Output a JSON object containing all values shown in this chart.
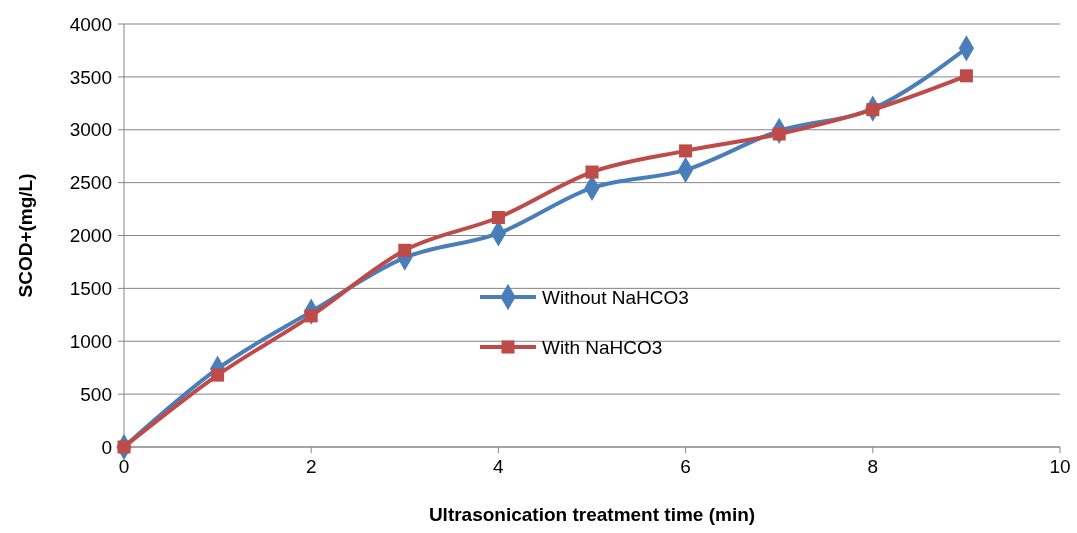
{
  "chart_data": {
    "type": "line",
    "xlabel": "Ultrasonication treatment time (min)",
    "ylabel": "SCOD+(mg/L)",
    "xlim": [
      0,
      10
    ],
    "xticks": [
      0,
      2,
      4,
      6,
      8,
      10
    ],
    "ylim": [
      0,
      4000
    ],
    "yticks": [
      0,
      500,
      1000,
      1500,
      2000,
      2500,
      3000,
      3500,
      4000
    ],
    "x": [
      0,
      1,
      2,
      3,
      4,
      5,
      6,
      7,
      8,
      9
    ],
    "grid": "y",
    "legend": "center",
    "series": [
      {
        "name": "Without NaHCO3",
        "color": "#4a7ebb",
        "marker": "diamond",
        "values": [
          0,
          740,
          1280,
          1790,
          2020,
          2450,
          2620,
          2990,
          3200,
          3770
        ]
      },
      {
        "name": "With NaHCO3",
        "color": "#be4b48",
        "marker": "square",
        "values": [
          0,
          680,
          1240,
          1860,
          2170,
          2600,
          2800,
          2960,
          3190,
          3510
        ]
      }
    ]
  }
}
